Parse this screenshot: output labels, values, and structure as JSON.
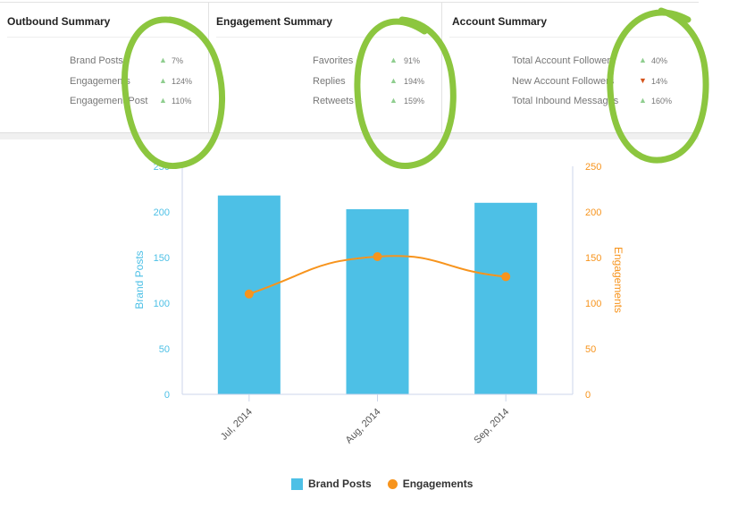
{
  "cards": [
    {
      "title": "Outbound Summary",
      "rows": [
        {
          "label": "Brand Posts",
          "trend": "up",
          "pct": "7%"
        },
        {
          "label": "Engagements",
          "trend": "up",
          "pct": "124%"
        },
        {
          "label": "Engagement/Post",
          "trend": "up",
          "pct": "110%"
        }
      ]
    },
    {
      "title": "Engagement Summary",
      "rows": [
        {
          "label": "Favorites",
          "trend": "up",
          "pct": "91%"
        },
        {
          "label": "Replies",
          "trend": "up",
          "pct": "194%"
        },
        {
          "label": "Retweets",
          "trend": "up",
          "pct": "159%"
        }
      ]
    },
    {
      "title": "Account Summary",
      "rows": [
        {
          "label": "Total Account Followers",
          "trend": "up",
          "pct": "40%"
        },
        {
          "label": "New Account Followers",
          "trend": "down",
          "pct": "14%"
        },
        {
          "label": "Total Inbound Messages",
          "trend": "up",
          "pct": "160%"
        }
      ]
    }
  ],
  "colors": {
    "up": "#8fce8f",
    "down": "#d5531a",
    "bars": "#4dc0e6",
    "line": "#f7941d",
    "annotation": "#8cc63f"
  },
  "chart_data": {
    "type": "bar+line",
    "categories": [
      "Jul, 2014",
      "Aug, 2014",
      "Sep, 2014"
    ],
    "series": [
      {
        "name": "Brand Posts",
        "type": "bar",
        "axis": "left",
        "values": [
          218,
          203,
          210
        ]
      },
      {
        "name": "Engagements",
        "type": "line",
        "axis": "right",
        "values": [
          110,
          151,
          129
        ]
      }
    ],
    "ylabel_left": "Brand Posts",
    "ylabel_right": "Engagements",
    "ylim_left": [
      0,
      250
    ],
    "ylim_right": [
      0,
      250
    ],
    "yticks": [
      0,
      50,
      100,
      150,
      200,
      250
    ],
    "legend": "bottom",
    "grid": false
  }
}
